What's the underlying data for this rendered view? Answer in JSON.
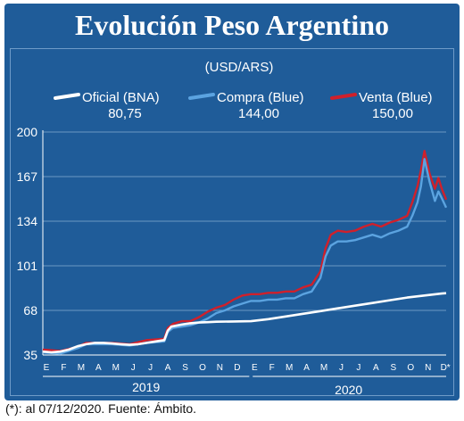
{
  "title": "Evolución Peso Argentino",
  "footnote": "(*): al 07/12/2020. Fuente: Ámbito.",
  "colors": {
    "background": "#1f5c99",
    "oficial": "#ffffff",
    "compra": "#5ba3e0",
    "venta": "#d0202b"
  },
  "chart_data": {
    "type": "line",
    "unit_label": "(USD/ARS)",
    "ylim": [
      35,
      200
    ],
    "yticks": [
      35,
      68,
      101,
      134,
      167,
      200
    ],
    "grid": true,
    "month_labels": [
      "E",
      "F",
      "M",
      "A",
      "M",
      "J",
      "J",
      "A",
      "S",
      "O",
      "N",
      "D",
      "E",
      "F",
      "M",
      "A",
      "M",
      "J",
      "J",
      "A",
      "S",
      "O",
      "N",
      "D*"
    ],
    "years": [
      "2019",
      "2020"
    ],
    "x_range": [
      0,
      23.25
    ],
    "series": [
      {
        "name": "Oficial (BNA)",
        "last_value": "80,75",
        "x": [
          0,
          0.5,
          1,
          1.5,
          2,
          2.5,
          3,
          3.5,
          4,
          4.5,
          5,
          5.5,
          6,
          6.5,
          7,
          7.2,
          7.4,
          8,
          8.5,
          9,
          9.5,
          10,
          11,
          12,
          13,
          14,
          15,
          16,
          17,
          18,
          19,
          20,
          21,
          22,
          23,
          23.25
        ],
        "y": [
          37.5,
          37.0,
          37.5,
          39.0,
          41.5,
          43.0,
          44.0,
          44.0,
          43.5,
          43.0,
          42.5,
          43.0,
          44.0,
          45.0,
          46.0,
          53.0,
          56.0,
          57.5,
          58.5,
          59.0,
          59.3,
          59.6,
          59.8,
          60.0,
          61.5,
          63.5,
          65.5,
          67.5,
          69.5,
          71.5,
          73.5,
          75.5,
          77.5,
          79.0,
          80.5,
          80.75
        ]
      },
      {
        "name": "Compra (Blue)",
        "last_value": "144,00",
        "x": [
          0,
          1,
          2,
          2.5,
          3,
          4,
          5,
          6,
          7,
          7.2,
          7.5,
          8,
          8.5,
          9,
          9.5,
          10,
          10.5,
          11,
          11.5,
          12,
          12.5,
          13,
          13.5,
          14,
          14.5,
          15,
          15.5,
          16,
          16.3,
          16.6,
          17,
          17.5,
          18,
          18.5,
          19,
          19.5,
          20,
          20.5,
          21,
          21.3,
          21.6,
          21.8,
          22,
          22.3,
          22.6,
          22.8,
          23,
          23.25
        ],
        "y": [
          37,
          36,
          40,
          43,
          43,
          43,
          42,
          44,
          45,
          52,
          55,
          56,
          57,
          59,
          62,
          66,
          68,
          71,
          73,
          75,
          75,
          76,
          76,
          77,
          77,
          80,
          82,
          92,
          108,
          116,
          119,
          119,
          120,
          122,
          124,
          122,
          125,
          127,
          130,
          138,
          148,
          160,
          180,
          163,
          149,
          156,
          151,
          144
        ]
      },
      {
        "name": "Venta (Blue)",
        "last_value": "150,00",
        "x": [
          0,
          1,
          2,
          2.5,
          3,
          4,
          5,
          6,
          7,
          7.2,
          7.5,
          8,
          8.5,
          9,
          9.5,
          10,
          10.5,
          11,
          11.5,
          12,
          12.5,
          13,
          13.5,
          14,
          14.5,
          15,
          15.5,
          16,
          16.3,
          16.6,
          17,
          17.5,
          18,
          18.5,
          19,
          19.5,
          20,
          20.5,
          21,
          21.3,
          21.6,
          21.8,
          22,
          22.3,
          22.6,
          22.8,
          23,
          23.25
        ],
        "y": [
          39,
          38,
          41,
          44,
          44,
          44,
          43,
          46,
          47,
          55,
          58,
          60,
          60,
          63,
          67,
          70,
          72,
          76,
          79,
          80,
          80,
          81,
          81,
          82,
          82,
          85,
          87,
          97,
          114,
          124,
          127,
          126,
          127,
          130,
          132,
          130,
          133,
          135,
          138,
          148,
          160,
          172,
          186,
          169,
          158,
          166,
          158,
          150
        ]
      }
    ]
  }
}
